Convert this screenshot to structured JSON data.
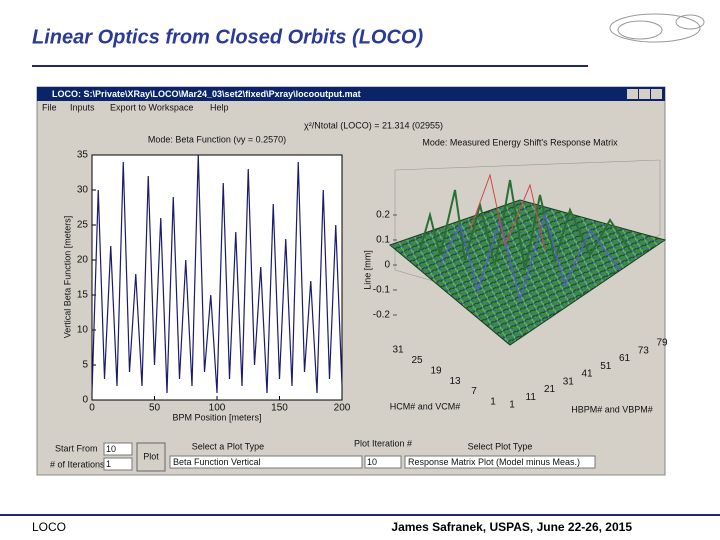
{
  "slide": {
    "title": "Linear Optics from Closed Orbits (LOCO)",
    "footer_left": "LOCO",
    "footer_right": "James Safranek, USPAS, June 22-26, 2015"
  },
  "window": {
    "title": "LOCO:  S:\\Private\\XRay\\LOCO\\Mar24_03\\set2\\fixed\\Pxray\\locooutput.mat",
    "menu": [
      "File",
      "Inputs",
      "Export to Workspace",
      "Help"
    ]
  },
  "chi2_label": "χ²/Ntotal (LOCO) = 21.314 (02955)",
  "left_plot": {
    "type": "line",
    "title": "Mode: Beta Function (νy = 0.2570)",
    "xlabel": "BPM Position [meters]",
    "ylabel": "Vertical Beta Function [meters]",
    "xlim": [
      0,
      200
    ],
    "ylim": [
      0,
      35
    ],
    "xticks": [
      0,
      50,
      100,
      150,
      200
    ],
    "yticks": [
      0,
      5,
      10,
      15,
      20,
      25,
      30,
      35
    ],
    "color": "#1a1a6e",
    "x": [
      0,
      5,
      10,
      15,
      20,
      25,
      30,
      35,
      40,
      45,
      50,
      55,
      60,
      65,
      70,
      75,
      80,
      85,
      90,
      95,
      100,
      105,
      110,
      115,
      120,
      125,
      130,
      135,
      140,
      145,
      150,
      155,
      160,
      165,
      170,
      175,
      180,
      185,
      190,
      195,
      200
    ],
    "values": [
      1,
      30,
      3,
      22,
      2,
      34,
      4,
      18,
      2,
      32,
      5,
      26,
      1,
      29,
      3,
      20,
      2,
      35,
      4,
      15,
      1,
      31,
      3,
      24,
      2,
      33,
      5,
      19,
      1,
      28,
      3,
      23,
      2,
      34,
      4,
      17,
      1,
      30,
      3,
      25,
      2
    ]
  },
  "right_plot": {
    "type": "surface",
    "title": "Mode: Measured Energy Shift's Response Matrix",
    "zlabel": "Line [mm]",
    "xlabel": "HCM# and VCM#",
    "ylabel": "HBPM# and VBPM#",
    "zticks": [
      0.2,
      0.1,
      0,
      -0.1,
      -0.2
    ],
    "hcm_ticks": [
      31,
      25,
      19,
      13,
      7,
      1
    ],
    "bpm_ticks": [
      1,
      11,
      21,
      31,
      41,
      51,
      61,
      73,
      79
    ]
  },
  "controls": {
    "start_from_label": "Start From",
    "start_from_value": "10",
    "iterations_label": "# of Iterations",
    "iterations_value": "1",
    "plot_button": "Plot",
    "plot_type_label": "Select a Plot Type",
    "plot_type_value": "Beta Function Vertical",
    "iteration_label": "Plot Iteration #",
    "iteration_value": "10",
    "sub_type_label": "Select Plot Type",
    "sub_type_value": "Response Matrix Plot (Model minus Meas.)"
  }
}
